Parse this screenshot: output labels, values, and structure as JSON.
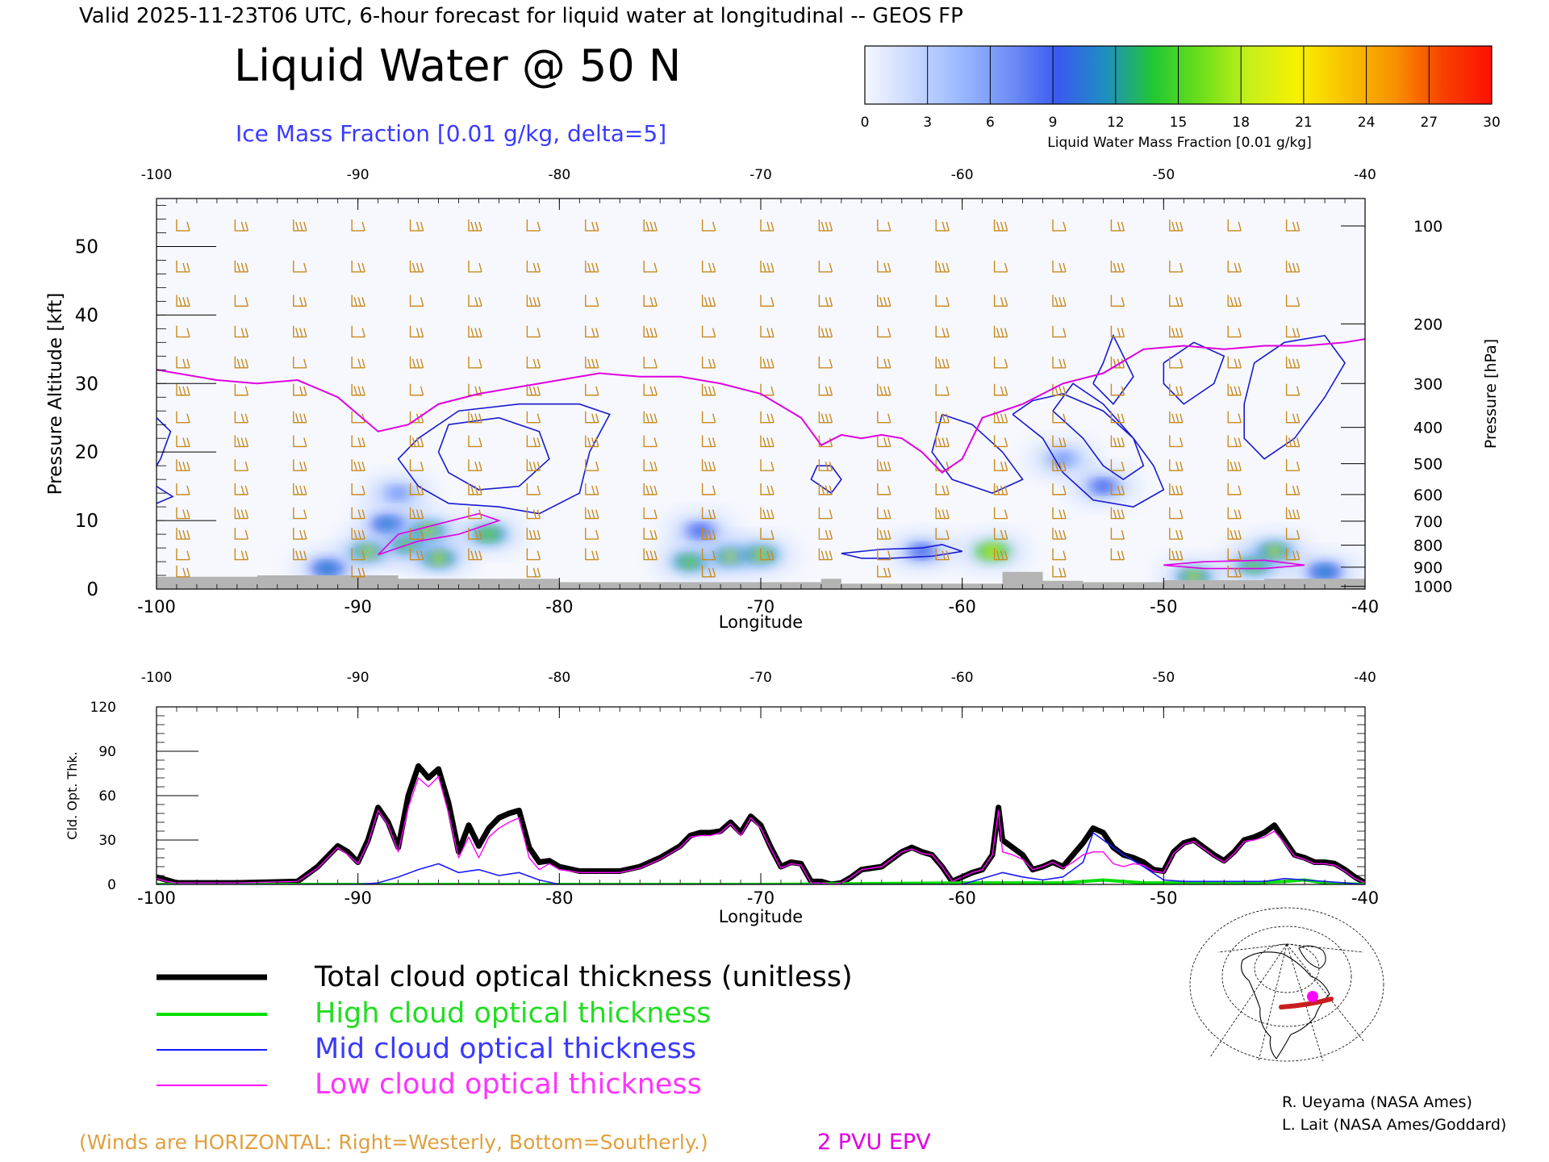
{
  "header": {
    "valid_line": "Valid 2025-11-23T06 UTC, 6-hour forecast for liquid water at longitudinal -- GEOS FP",
    "title": "Liquid Water @ 50 N",
    "subtitle": "Ice Mass Fraction [0.01 g/kg, delta=5]"
  },
  "colorbar": {
    "label": "Liquid Water Mass Fraction [0.01 g/kg]",
    "ticks": [
      "0",
      "3",
      "6",
      "9",
      "12",
      "15",
      "18",
      "21",
      "24",
      "27",
      "30"
    ],
    "colors": [
      "#f4f7ff",
      "#c8d8ff",
      "#9ab8ff",
      "#6f8ff5",
      "#3a5af0",
      "#1f8fc0",
      "#22c832",
      "#6fe01a",
      "#c8f01a",
      "#f8f000",
      "#f8c000",
      "#f89000",
      "#f84000",
      "#ff1000"
    ]
  },
  "chart_data": [
    {
      "type": "heatmap",
      "title": "Liquid Water @ 50 N",
      "xlabel": "Longitude",
      "ylabel": "Pressure Altitude [kft]",
      "y2label": "Pressure [hPa]",
      "xlim": [
        -100,
        -40
      ],
      "ylim": [
        0,
        57
      ],
      "x_ticks": [
        "-100",
        "-90",
        "-80",
        "-70",
        "-60",
        "-50",
        "-40"
      ],
      "y_ticks": [
        "0",
        "10",
        "20",
        "30",
        "40",
        "50"
      ],
      "pressure_ticks": [
        {
          "label": "100",
          "kft": 53
        },
        {
          "label": "200",
          "kft": 38.7
        },
        {
          "label": "300",
          "kft": 30
        },
        {
          "label": "400",
          "kft": 23.6
        },
        {
          "label": "500",
          "kft": 18.3
        },
        {
          "label": "600",
          "kft": 13.8
        },
        {
          "label": "700",
          "kft": 9.9
        },
        {
          "label": "800",
          "kft": 6.4
        },
        {
          "label": "900",
          "kft": 3.2
        },
        {
          "label": "1000",
          "kft": 0.4
        }
      ],
      "liquid_water_blobs": [
        {
          "lon": -91.5,
          "kft": 3.0,
          "value": 12
        },
        {
          "lon": -89.5,
          "kft": 5.5,
          "value": 18
        },
        {
          "lon": -88.5,
          "kft": 9.5,
          "value": 12
        },
        {
          "lon": -87.5,
          "kft": 6.5,
          "value": 15
        },
        {
          "lon": -86.5,
          "kft": 8.5,
          "value": 18
        },
        {
          "lon": -86.0,
          "kft": 4.5,
          "value": 18
        },
        {
          "lon": -83.5,
          "kft": 8.0,
          "value": 15
        },
        {
          "lon": -88.0,
          "kft": 14.0,
          "value": 6
        },
        {
          "lon": -73.5,
          "kft": 4.0,
          "value": 15
        },
        {
          "lon": -71.5,
          "kft": 4.8,
          "value": 18
        },
        {
          "lon": -70.0,
          "kft": 5.0,
          "value": 18
        },
        {
          "lon": -73.0,
          "kft": 8.5,
          "value": 9
        },
        {
          "lon": -62.0,
          "kft": 5.5,
          "value": 9
        },
        {
          "lon": -58.5,
          "kft": 5.5,
          "value": 21
        },
        {
          "lon": -55.0,
          "kft": 19.0,
          "value": 6
        },
        {
          "lon": -53.0,
          "kft": 15.0,
          "value": 9
        },
        {
          "lon": -48.5,
          "kft": 1.8,
          "value": 18
        },
        {
          "lon": -45.5,
          "kft": 3.5,
          "value": 15
        },
        {
          "lon": -44.5,
          "kft": 5.5,
          "value": 18
        },
        {
          "lon": -42.0,
          "kft": 2.5,
          "value": 12
        }
      ],
      "epv_2pvu_line": {
        "lon": [
          -100,
          -97,
          -95,
          -93,
          -91,
          -89,
          -87.5,
          -86,
          -84,
          -82,
          -80,
          -78,
          -76,
          -74,
          -72,
          -70,
          -68,
          -67,
          -66,
          -65,
          -64,
          -63,
          -62,
          -61,
          -60,
          -59,
          -57,
          -55,
          -53,
          -51,
          -49,
          -47,
          -45,
          -43,
          -41,
          -40
        ],
        "kft": [
          32,
          30.5,
          30,
          30.5,
          28,
          23,
          24,
          27,
          28.5,
          29.5,
          30.5,
          31.5,
          31,
          31,
          30,
          28.5,
          25,
          21,
          22.5,
          22,
          22.5,
          22,
          20,
          17,
          19,
          25,
          27,
          30,
          31.5,
          35,
          35.5,
          35,
          35.5,
          35.5,
          36,
          36.5
        ]
      },
      "surface_terrain": {
        "lon": [
          -100,
          -95,
          -90,
          -88,
          -85,
          -80,
          -67,
          -66,
          -58,
          -56,
          -54,
          -50,
          -45,
          -40
        ],
        "kft": [
          1.8,
          2.0,
          2.0,
          1.5,
          1.5,
          1.0,
          1.5,
          0.8,
          2.5,
          1.2,
          1.0,
          1.3,
          1.5,
          1.5
        ]
      },
      "caption_winds": "(Winds are HORIZONTAL: Right=Westerly, Bottom=Southerly.)",
      "caption_epv": "2 PVU EPV"
    },
    {
      "type": "line",
      "xlabel": "Longitude",
      "ylabel": "Cld. Opt. Thk.",
      "xlim": [
        -100,
        -40
      ],
      "ylim": [
        0,
        120
      ],
      "x_ticks": [
        "-100",
        "-90",
        "-80",
        "-70",
        "-60",
        "-50",
        "-40"
      ],
      "y_ticks": [
        "0",
        "30",
        "60",
        "90",
        "120"
      ],
      "series": [
        {
          "name": "Total cloud optical thickness (unitless)",
          "color": "#000000",
          "x": [
            -100,
            -99.5,
            -99,
            -96,
            -93,
            -92,
            -91,
            -90.5,
            -90,
            -89.5,
            -89,
            -88.5,
            -88,
            -87.5,
            -87,
            -86.5,
            -86,
            -85.5,
            -85,
            -84.5,
            -84,
            -83.5,
            -83,
            -82.5,
            -82,
            -81.5,
            -81,
            -80.5,
            -80,
            -79,
            -78,
            -77,
            -76,
            -75,
            -74,
            -73.5,
            -73,
            -72.5,
            -72,
            -71.5,
            -71,
            -70.5,
            -70,
            -69.5,
            -69,
            -68.5,
            -68,
            -67.5,
            -67,
            -66.5,
            -66,
            -65.5,
            -65,
            -64,
            -63,
            -62.5,
            -62,
            -61.5,
            -61,
            -60.5,
            -60,
            -59.5,
            -59,
            -58.5,
            -58.2,
            -58,
            -57.5,
            -57,
            -56.5,
            -56,
            -55.5,
            -55,
            -54.5,
            -54,
            -53.5,
            -53,
            -52.5,
            -52,
            -51.5,
            -51,
            -50.5,
            -50,
            -49.5,
            -49,
            -48.5,
            -48,
            -47.5,
            -47,
            -46.5,
            -46,
            -45.5,
            -45,
            -44.5,
            -44,
            -43.5,
            -43,
            -42.5,
            -42,
            -41.5,
            -41,
            -40.5,
            -40
          ],
          "y": [
            5,
            3,
            1,
            1,
            2,
            12,
            26,
            22,
            15,
            30,
            52,
            42,
            25,
            60,
            80,
            72,
            78,
            55,
            22,
            40,
            26,
            38,
            45,
            48,
            50,
            25,
            15,
            16,
            12,
            9,
            9,
            9,
            12,
            18,
            26,
            33,
            35,
            35,
            36,
            42,
            35,
            46,
            40,
            25,
            12,
            15,
            14,
            2,
            2,
            0,
            1,
            5,
            10,
            12,
            22,
            25,
            22,
            20,
            12,
            2,
            5,
            8,
            10,
            20,
            52,
            30,
            25,
            20,
            10,
            12,
            15,
            12,
            20,
            28,
            38,
            35,
            25,
            20,
            18,
            15,
            10,
            9,
            22,
            28,
            30,
            25,
            20,
            16,
            22,
            30,
            32,
            35,
            40,
            30,
            20,
            18,
            15,
            15,
            14,
            10,
            5,
            1
          ]
        },
        {
          "name": "High cloud optical thickness",
          "color": "#00e000",
          "x": [
            -100,
            -90,
            -80,
            -70,
            -60,
            -55,
            -54,
            -53,
            -52,
            -51,
            -50,
            -48,
            -46,
            -44,
            -43,
            -42,
            -40
          ],
          "y": [
            0,
            0,
            0,
            0,
            1,
            1,
            2,
            3,
            2,
            1,
            1,
            1,
            1,
            2,
            3,
            1,
            0
          ]
        },
        {
          "name": "Mid cloud optical thickness",
          "color": "#1a1aff",
          "x": [
            -100,
            -91,
            -90,
            -89,
            -88,
            -87,
            -86,
            -85,
            -84,
            -83,
            -82,
            -81,
            -80,
            -70,
            -60,
            -58,
            -57,
            -56,
            -55,
            -54,
            -53.5,
            -53,
            -52,
            -51,
            -50,
            -49,
            -47,
            -45,
            -44,
            -43,
            -42,
            -41,
            -40
          ],
          "y": [
            0,
            0,
            0,
            1,
            5,
            10,
            14,
            8,
            10,
            6,
            8,
            3,
            0,
            0,
            0,
            8,
            5,
            3,
            5,
            15,
            35,
            30,
            20,
            12,
            3,
            2,
            2,
            2,
            4,
            3,
            2,
            1,
            0
          ]
        },
        {
          "name": "Low cloud optical thickness",
          "color": "#ff00ff",
          "x": [
            -100,
            -99.5,
            -99,
            -96,
            -93,
            -92,
            -91,
            -90.5,
            -90,
            -89.5,
            -89,
            -88.5,
            -88,
            -87.5,
            -87,
            -86.5,
            -86,
            -85.5,
            -85,
            -84.5,
            -84,
            -83.5,
            -83,
            -82.5,
            -82,
            -81.5,
            -81,
            -80.5,
            -80,
            -79,
            -78,
            -77,
            -76,
            -75,
            -74,
            -73.5,
            -73,
            -72.5,
            -72,
            -71.5,
            -71,
            -70.5,
            -70,
            -69.5,
            -69,
            -68.5,
            -68,
            -67.5,
            -67,
            -66.5,
            -66,
            -65.5,
            -65,
            -64,
            -63,
            -62.5,
            -62,
            -61.5,
            -61,
            -60.5,
            -60,
            -59.5,
            -59,
            -58.5,
            -58.2,
            -58,
            -57.5,
            -57,
            -56.5,
            -56,
            -55.5,
            -55,
            -54.5,
            -54,
            -53.5,
            -53,
            -52.5,
            -52,
            -51.5,
            -51,
            -50.5,
            -50,
            -49.5,
            -49,
            -48.5,
            -48,
            -47.5,
            -47,
            -46.5,
            -46,
            -45.5,
            -45,
            -44.5,
            -44,
            -43.5,
            -43,
            -42.5,
            -42,
            -41.5,
            -41,
            -40.5,
            -40
          ],
          "y": [
            4,
            2,
            1,
            1,
            2,
            11,
            25,
            20,
            14,
            28,
            50,
            40,
            22,
            52,
            72,
            66,
            73,
            48,
            18,
            32,
            18,
            32,
            38,
            42,
            45,
            18,
            10,
            14,
            10,
            8,
            8,
            8,
            11,
            17,
            25,
            32,
            33,
            33,
            35,
            41,
            33,
            45,
            38,
            24,
            11,
            14,
            13,
            1,
            1,
            0,
            1,
            5,
            10,
            12,
            22,
            24,
            21,
            20,
            12,
            2,
            5,
            8,
            10,
            20,
            50,
            22,
            20,
            17,
            10,
            12,
            15,
            11,
            15,
            20,
            22,
            22,
            14,
            12,
            14,
            13,
            9,
            8,
            21,
            27,
            29,
            24,
            19,
            15,
            21,
            29,
            30,
            32,
            36,
            28,
            19,
            17,
            14,
            14,
            13,
            9,
            4,
            1
          ]
        }
      ]
    }
  ],
  "legend": {
    "total": "Total cloud optical thickness (unitless)",
    "high": "High cloud optical thickness",
    "mid": "Mid cloud optical thickness",
    "low": "Low cloud optical thickness"
  },
  "credits": {
    "line1": "R. Ueyama (NASA Ames)",
    "line2": "L. Lait (NASA Ames/Goddard)"
  },
  "colors": {
    "epv": "#e000e0",
    "ice_contour": "#1a1ad0",
    "wind_barb": "#c88a1e",
    "terrain": "#b4b4b4",
    "subtitle": "#3a3aff",
    "winds_caption": "#e0a040"
  }
}
